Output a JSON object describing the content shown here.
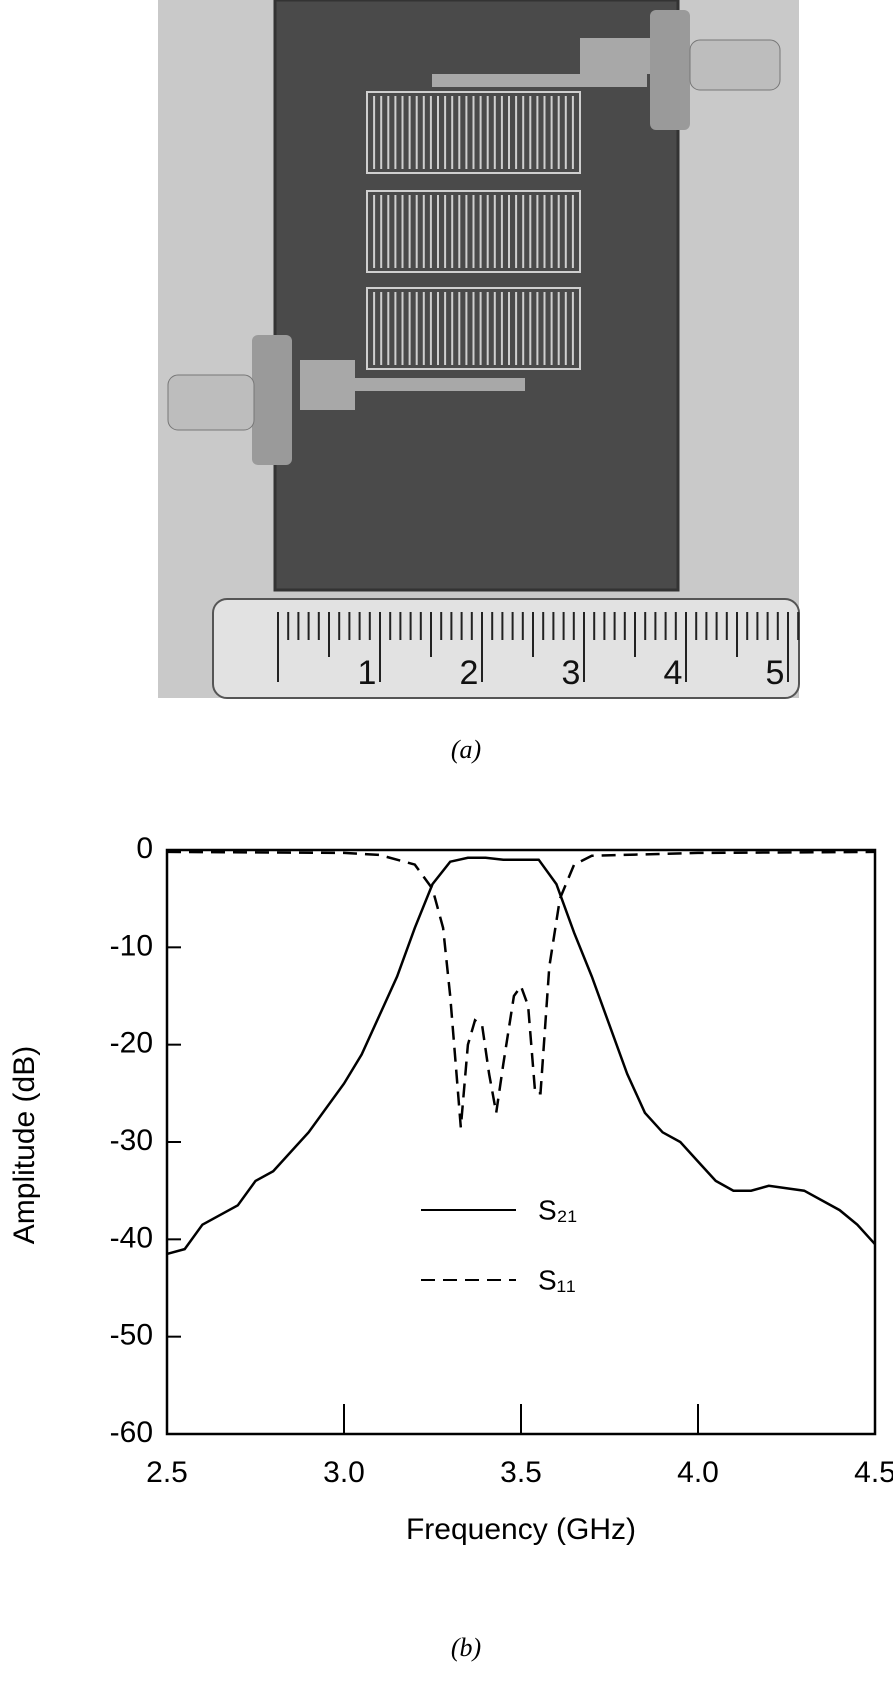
{
  "photo": {
    "ruler_labels": [
      "1",
      "2",
      "3",
      "4",
      "5"
    ],
    "caption": "(a)"
  },
  "chart_data": {
    "type": "line",
    "caption": "(b)",
    "x_label": "Frequency  (GHz)",
    "y_label": "Amplitude (dB)",
    "xlim": [
      2.5,
      4.5
    ],
    "ylim": [
      -60,
      0
    ],
    "xticks": [
      2.5,
      {
        "value": 3,
        "label": "3.0"
      },
      3.5,
      {
        "value": 4,
        "label": "4.0"
      },
      4.5
    ],
    "yticks": [
      0,
      -10,
      -20,
      -30,
      -40,
      -50,
      -60
    ],
    "series": [
      {
        "name": "S₂₁",
        "color": "#000000",
        "line_style": "solid",
        "x": [
          2.5,
          2.55,
          2.6,
          2.7,
          2.75,
          2.8,
          2.9,
          3.0,
          3.05,
          3.1,
          3.15,
          3.2,
          3.25,
          3.3,
          3.35,
          3.4,
          3.45,
          3.5,
          3.55,
          3.6,
          3.65,
          3.7,
          3.75,
          3.8,
          3.85,
          3.9,
          3.95,
          4.0,
          4.05,
          4.1,
          4.15,
          4.2,
          4.3,
          4.4,
          4.45,
          4.5
        ],
        "values": [
          -41.5,
          -41,
          -38.5,
          -36.5,
          -34,
          -33,
          -29,
          -24,
          -21,
          -17,
          -13,
          -8,
          -3.5,
          -1.2,
          -0.8,
          -0.8,
          -1,
          -1,
          -1,
          -3.5,
          -8.5,
          -13,
          -18,
          -23,
          -27,
          -29,
          -30,
          -32,
          -34,
          -35,
          -35,
          -34.5,
          -35,
          -37,
          -38.5,
          -40.5
        ]
      },
      {
        "name": "S₁₁",
        "color": "#000000",
        "line_style": "dashed",
        "x": [
          2.5,
          3.0,
          3.1,
          3.2,
          3.25,
          3.28,
          3.3,
          3.32,
          3.33,
          3.35,
          3.37,
          3.39,
          3.41,
          3.43,
          3.45,
          3.48,
          3.5,
          3.52,
          3.54,
          3.555,
          3.58,
          3.61,
          3.65,
          3.7,
          4.0,
          4.5
        ],
        "values": [
          -0.2,
          -0.3,
          -0.5,
          -1.5,
          -4,
          -8,
          -15,
          -24,
          -28.5,
          -20,
          -17.5,
          -18,
          -23,
          -27,
          -22,
          -15,
          -14,
          -16,
          -25,
          -25,
          -12,
          -5,
          -1.5,
          -0.6,
          -0.3,
          -0.2
        ]
      }
    ]
  }
}
